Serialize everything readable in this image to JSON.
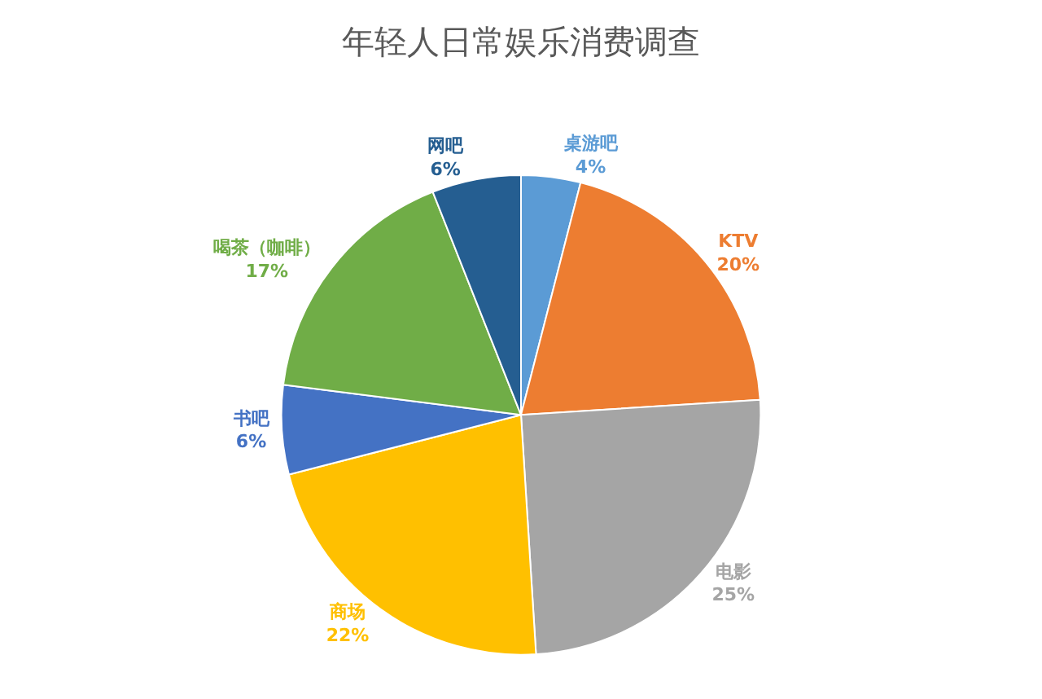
{
  "chart_data": {
    "type": "pie",
    "title": "年轻人日常娱乐消费调查",
    "categories": [
      "桌游吧",
      "KTV",
      "电影",
      "商场",
      "书吧",
      "喝茶（咖啡）",
      "网吧"
    ],
    "values": [
      4,
      20,
      25,
      22,
      6,
      17,
      6
    ],
    "value_labels": [
      "4%",
      "20%",
      "25%",
      "22%",
      "6%",
      "17%",
      "6%"
    ],
    "colors": [
      "#5b9bd5",
      "#ed7d31",
      "#a5a5a5",
      "#ffc000",
      "#4472c4",
      "#70ad47",
      "#255e91"
    ],
    "legend": false
  }
}
